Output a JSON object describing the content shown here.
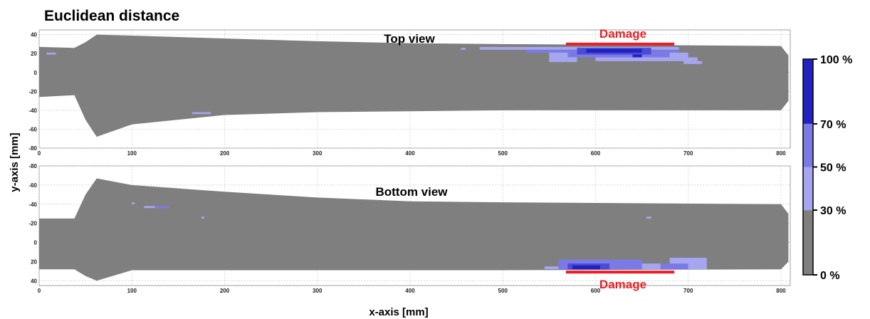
{
  "title": "Euclidean distance",
  "xlabel": "x-axis [mm]",
  "ylabel": "y-axis [mm]",
  "colors": {
    "blade": "#7f7f7f",
    "damage_marker": "#ee1c24",
    "level_30": "#a6a6f0",
    "level_50": "#7a7ae6",
    "level_70": "#4b4bd6",
    "level_100": "#2222c2",
    "grid": "#c8c8c8"
  },
  "chart_data": [
    {
      "type": "heatmap",
      "panel": "top",
      "subtitle": "Top view",
      "xlim": [
        0,
        810
      ],
      "ylim": [
        -80,
        45
      ],
      "y_inverted": false,
      "x_ticks": [
        0,
        100,
        200,
        300,
        400,
        500,
        600,
        700,
        800
      ],
      "y_ticks": [
        -80,
        -60,
        -40,
        -20,
        0,
        20,
        40
      ],
      "grid": true,
      "blade_outline": {
        "x_top": [
          0,
          38,
          50,
          62,
          100,
          200,
          300,
          400,
          500,
          800,
          808
        ],
        "y_top": [
          27,
          26,
          32,
          40,
          39,
          36,
          33,
          31,
          30,
          28,
          18
        ],
        "x_bottom": [
          808,
          800,
          500,
          400,
          300,
          200,
          100,
          62,
          50,
          38,
          0
        ],
        "y_bottom": [
          -30,
          -40,
          -40,
          -41,
          -42,
          -45,
          -55,
          -68,
          -50,
          -24,
          -26
        ]
      },
      "damage_marker": {
        "label": "Damage",
        "x_start": 568,
        "x_end": 685,
        "y": 30
      },
      "cells": [
        {
          "x0": 8,
          "x1": 18,
          "y0": 19,
          "y1": 21,
          "level": 30
        },
        {
          "x0": 165,
          "x1": 185,
          "y0": -44,
          "y1": -42,
          "level": 30
        },
        {
          "x0": 455,
          "x1": 460,
          "y0": 24,
          "y1": 26,
          "level": 30
        },
        {
          "x0": 475,
          "x1": 690,
          "y0": 24,
          "y1": 27,
          "level": 30
        },
        {
          "x0": 525,
          "x1": 690,
          "y0": 21,
          "y1": 24,
          "level": 50
        },
        {
          "x0": 550,
          "x1": 700,
          "y0": 16,
          "y1": 21,
          "level": 30
        },
        {
          "x0": 570,
          "x1": 680,
          "y0": 16,
          "y1": 24,
          "level": 50
        },
        {
          "x0": 600,
          "x1": 710,
          "y0": 12,
          "y1": 16,
          "level": 30
        },
        {
          "x0": 695,
          "x1": 715,
          "y0": 9,
          "y1": 12,
          "level": 30
        },
        {
          "x0": 550,
          "x1": 580,
          "y0": 11,
          "y1": 16,
          "level": 30
        },
        {
          "x0": 580,
          "x1": 660,
          "y0": 19,
          "y1": 26,
          "level": 70
        },
        {
          "x0": 590,
          "x1": 650,
          "y0": 21,
          "y1": 25,
          "level": 100
        },
        {
          "x0": 640,
          "x1": 650,
          "y0": 16,
          "y1": 19,
          "level": 100
        }
      ]
    },
    {
      "type": "heatmap",
      "panel": "bottom",
      "subtitle": "Bottom view",
      "xlim": [
        0,
        810
      ],
      "ylim": [
        -80,
        45
      ],
      "y_inverted": true,
      "x_ticks": [
        0,
        100,
        200,
        300,
        400,
        500,
        600,
        700,
        800
      ],
      "y_ticks": [
        -80,
        -60,
        -40,
        -20,
        0,
        20,
        40
      ],
      "grid": true,
      "blade_outline": {
        "x_top": [
          0,
          38,
          50,
          62,
          100,
          200,
          300,
          400,
          500,
          800,
          808
        ],
        "y_top": [
          -25,
          -25,
          -50,
          -67,
          -60,
          -53,
          -47,
          -43,
          -42,
          -40,
          -30
        ],
        "x_bottom": [
          808,
          800,
          500,
          300,
          100,
          62,
          50,
          38,
          0
        ],
        "y_bottom": [
          20,
          28,
          29,
          29,
          29,
          40,
          35,
          28,
          28
        ]
      },
      "damage_marker": {
        "label": "Damage",
        "x_start": 568,
        "x_end": 685,
        "y": 31
      },
      "cells": [
        {
          "x0": 100,
          "x1": 103,
          "y0": -42,
          "y1": -40,
          "level": 30
        },
        {
          "x0": 113,
          "x1": 140,
          "y0": -38,
          "y1": -36,
          "level": 30
        },
        {
          "x0": 125,
          "x1": 140,
          "y0": -38,
          "y1": -36,
          "level": 50
        },
        {
          "x0": 175,
          "x1": 178,
          "y0": -27,
          "y1": -25,
          "level": 30
        },
        {
          "x0": 655,
          "x1": 660,
          "y0": -27,
          "y1": -25,
          "level": 30
        },
        {
          "x0": 545,
          "x1": 590,
          "y0": 25,
          "y1": 28,
          "level": 30
        },
        {
          "x0": 560,
          "x1": 650,
          "y0": 18,
          "y1": 28,
          "level": 50
        },
        {
          "x0": 570,
          "x1": 615,
          "y0": 22,
          "y1": 28,
          "level": 70
        },
        {
          "x0": 575,
          "x1": 605,
          "y0": 24,
          "y1": 28,
          "level": 100
        },
        {
          "x0": 650,
          "x1": 670,
          "y0": 22,
          "y1": 28,
          "level": 30
        },
        {
          "x0": 680,
          "x1": 720,
          "y0": 16,
          "y1": 28,
          "level": 30
        },
        {
          "x0": 670,
          "x1": 700,
          "y0": 22,
          "y1": 28,
          "level": 50
        }
      ]
    }
  ],
  "colorbar": {
    "ticks": [
      {
        "value": 0,
        "label": "0 %"
      },
      {
        "value": 30,
        "label": "30 %"
      },
      {
        "value": 50,
        "label": "50 %"
      },
      {
        "value": 70,
        "label": "70 %"
      },
      {
        "value": 100,
        "label": "100 %"
      }
    ],
    "bands": [
      {
        "from": 0,
        "to": 30,
        "color": "#7f7f7f"
      },
      {
        "from": 30,
        "to": 50,
        "color": "#a6a6f0"
      },
      {
        "from": 50,
        "to": 70,
        "color": "#7a7ae6"
      },
      {
        "from": 70,
        "to": 100,
        "color": "#2222c2"
      }
    ]
  }
}
